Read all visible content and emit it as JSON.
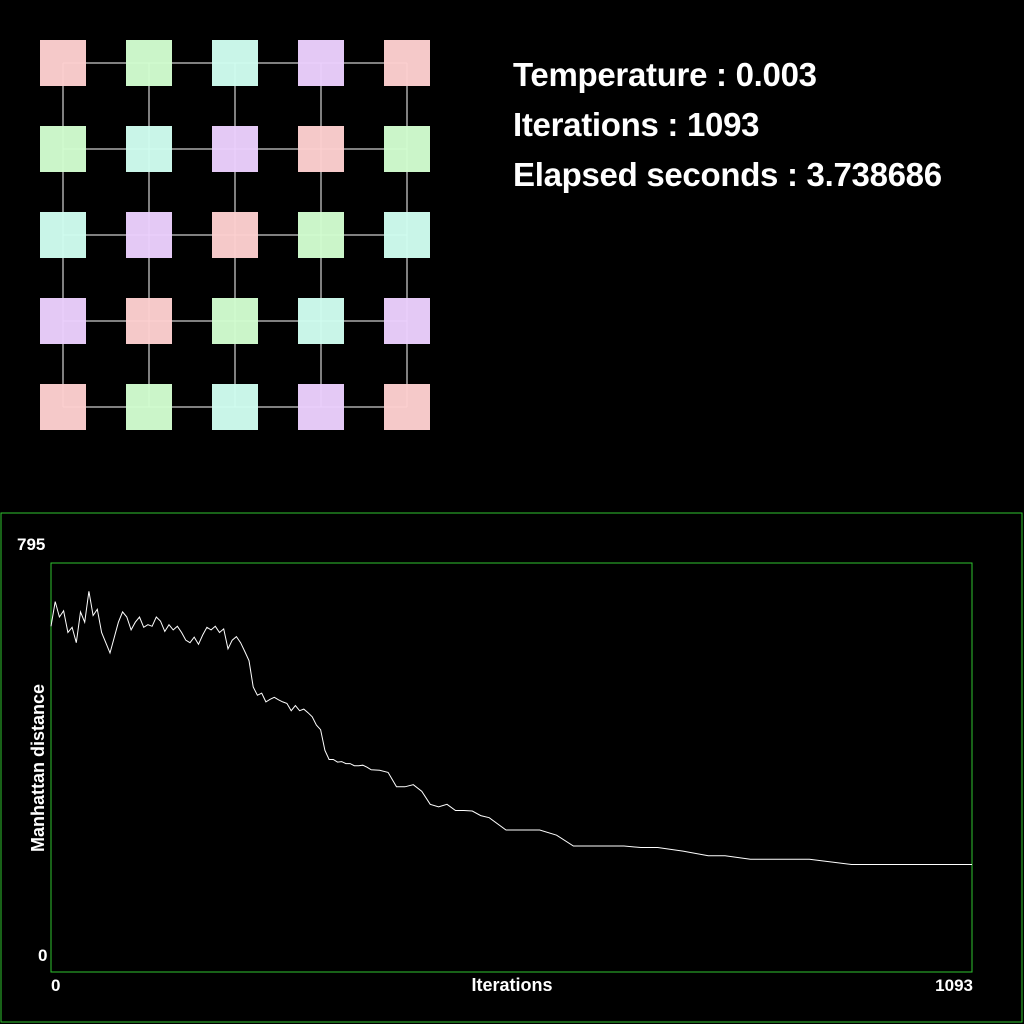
{
  "stats": {
    "temperature_label": "Temperature : ",
    "temperature": "0.003",
    "iterations_label": "Iterations : ",
    "iterations": "1093",
    "elapsed_label": "Elapsed seconds : ",
    "elapsed": "3.738686"
  },
  "grid": {
    "rows": 5,
    "cols": 5,
    "palette": [
      "#fdd0d0",
      "#d2fdd0",
      "#d0fdf0",
      "#ebd0fd"
    ],
    "cells": [
      [
        0,
        1,
        2,
        3,
        0
      ],
      [
        1,
        2,
        3,
        0,
        1
      ],
      [
        2,
        3,
        0,
        1,
        2
      ],
      [
        3,
        0,
        1,
        2,
        3
      ],
      [
        0,
        1,
        2,
        3,
        0
      ]
    ]
  },
  "chart_data": {
    "type": "line",
    "xlabel": "Iterations",
    "ylabel": "Manhattan distance",
    "xlim": [
      0,
      1093
    ],
    "ylim": [
      0,
      795
    ],
    "x_tick_labels": [
      "0",
      "1093"
    ],
    "y_tick_labels": [
      "0",
      "795"
    ],
    "frame_color": "#2fc42f",
    "line_color": "#ffffff",
    "series": [
      {
        "x": [
          0,
          5,
          10,
          15,
          20,
          25,
          30,
          35,
          40,
          45,
          50,
          55,
          60,
          65,
          70,
          75,
          80,
          85,
          90,
          95,
          100,
          105,
          110,
          115,
          120,
          125,
          130,
          135,
          140,
          145,
          150,
          155,
          160,
          165,
          170,
          175,
          180,
          185,
          190,
          195,
          200,
          205,
          210,
          215,
          220,
          225,
          230,
          235,
          240,
          245,
          250,
          255,
          260,
          265,
          270,
          275,
          280,
          285,
          290,
          295,
          300,
          305,
          310,
          315,
          320,
          325,
          330,
          335,
          340,
          345,
          350,
          355,
          360,
          365,
          370,
          375,
          380,
          390,
          400,
          410,
          420,
          430,
          440,
          450,
          460,
          470,
          480,
          490,
          500,
          510,
          520,
          540,
          560,
          580,
          600,
          620,
          650,
          680,
          700,
          720,
          750,
          780,
          800,
          830,
          850,
          900,
          950,
          1000,
          1050,
          1093
        ],
        "y": [
          672,
          720,
          690,
          702,
          660,
          670,
          640,
          700,
          680,
          740,
          693,
          705,
          660,
          640,
          620,
          650,
          680,
          700,
          690,
          665,
          680,
          690,
          670,
          675,
          672,
          690,
          682,
          662,
          675,
          665,
          672,
          660,
          645,
          640,
          651,
          637,
          655,
          670,
          665,
          672,
          660,
          667,
          628,
          645,
          652,
          640,
          623,
          605,
          554,
          538,
          542,
          525,
          530,
          534,
          529,
          525,
          522,
          508,
          518,
          508,
          511,
          504,
          496,
          480,
          471,
          431,
          413,
          413,
          408,
          409,
          405,
          405,
          401,
          401,
          402,
          398,
          393,
          392,
          388,
          360,
          360,
          364,
          351,
          326,
          321,
          326,
          314,
          314,
          313,
          304,
          300,
          276,
          276,
          276,
          266,
          245,
          245,
          245,
          242,
          242,
          235,
          226,
          226,
          219,
          219,
          219,
          209,
          209,
          209,
          209
        ]
      }
    ]
  }
}
